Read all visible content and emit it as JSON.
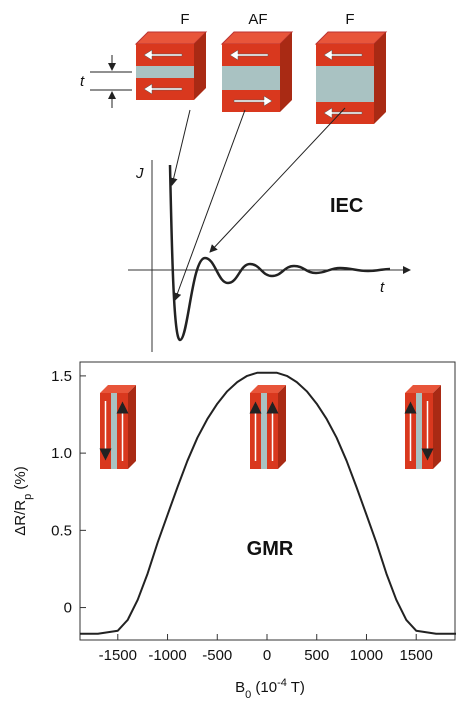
{
  "diagram": {
    "labels": [
      "F",
      "AF",
      "F"
    ],
    "thickness_label": "t",
    "y_axis_label": "J",
    "x_axis_label": "t",
    "title": "IEC"
  },
  "chart_data": {
    "type": "line",
    "annotation": "GMR",
    "ylabel": [
      "ΔR/R",
      "p",
      " (%)"
    ],
    "xlabel": [
      "B",
      "0",
      " (10",
      "-4",
      " T)"
    ],
    "xlim": [
      -1880,
      1900
    ],
    "ylim": [
      -0.21,
      1.59
    ],
    "xticks": [
      -1500,
      -1000,
      -500,
      0,
      500,
      1000,
      1500
    ],
    "yticks": [
      0,
      0.5,
      {
        "value": 1,
        "label": "1.0"
      },
      1.5
    ],
    "x": [
      -1880,
      -1700,
      -1500,
      -1400,
      -1300,
      -1200,
      -1100,
      -1000,
      -900,
      -800,
      -700,
      -600,
      -500,
      -400,
      -300,
      -200,
      -100,
      0,
      100,
      200,
      300,
      400,
      500,
      600,
      700,
      800,
      900,
      1000,
      1100,
      1200,
      1300,
      1400,
      1500,
      1700,
      1900
    ],
    "series": [
      {
        "color": "#222222",
        "values": [
          -0.17,
          -0.17,
          -0.15,
          -0.08,
          0.05,
          0.22,
          0.42,
          0.6,
          0.78,
          0.95,
          1.1,
          1.22,
          1.32,
          1.4,
          1.46,
          1.5,
          1.52,
          1.52,
          1.52,
          1.5,
          1.46,
          1.4,
          1.32,
          1.22,
          1.1,
          0.95,
          0.78,
          0.6,
          0.42,
          0.22,
          0.05,
          -0.08,
          -0.15,
          -0.17,
          -0.17
        ]
      }
    ]
  }
}
